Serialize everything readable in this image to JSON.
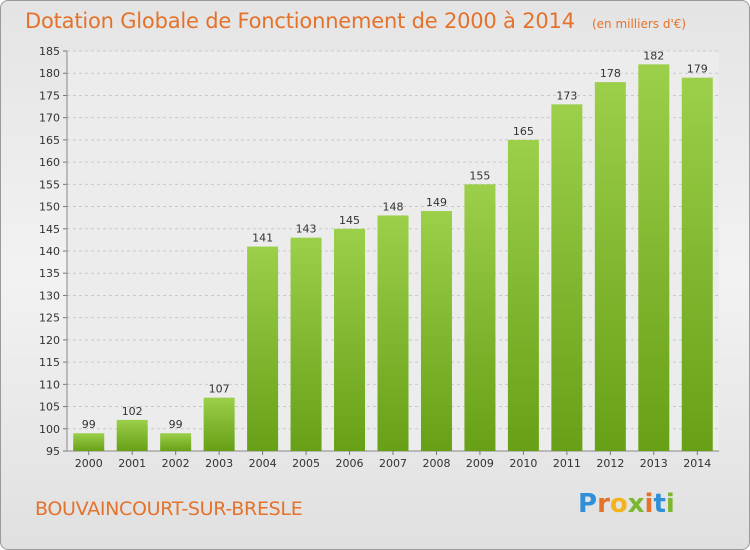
{
  "header": {
    "title": "Dotation Globale de Fonctionnement de 2000 à 2014",
    "subtitle": "(en milliers d'€)"
  },
  "commune": "BOUVAINCOURT-SUR-BRESLE",
  "logo": {
    "text": "Proxiti",
    "letter_colors": [
      "#2f8fd8",
      "#e4722b",
      "#f2b31c",
      "#7cb82f",
      "#e4722b",
      "#2f8fd8",
      "#7cb82f"
    ]
  },
  "chart_data": {
    "type": "bar",
    "categories": [
      "2000",
      "2001",
      "2002",
      "2003",
      "2004",
      "2005",
      "2006",
      "2007",
      "2008",
      "2009",
      "2010",
      "2011",
      "2012",
      "2013",
      "2014"
    ],
    "values": [
      99,
      102,
      99,
      107,
      141,
      143,
      145,
      148,
      149,
      155,
      165,
      173,
      178,
      182,
      179
    ],
    "ylim": [
      95,
      185
    ],
    "yticks": [
      95,
      100,
      105,
      110,
      115,
      120,
      125,
      130,
      135,
      140,
      145,
      150,
      155,
      160,
      165,
      170,
      175,
      180,
      185
    ],
    "grid": true,
    "bar_color_top": "#9ccf4a",
    "bar_color_bottom": "#67a017"
  }
}
